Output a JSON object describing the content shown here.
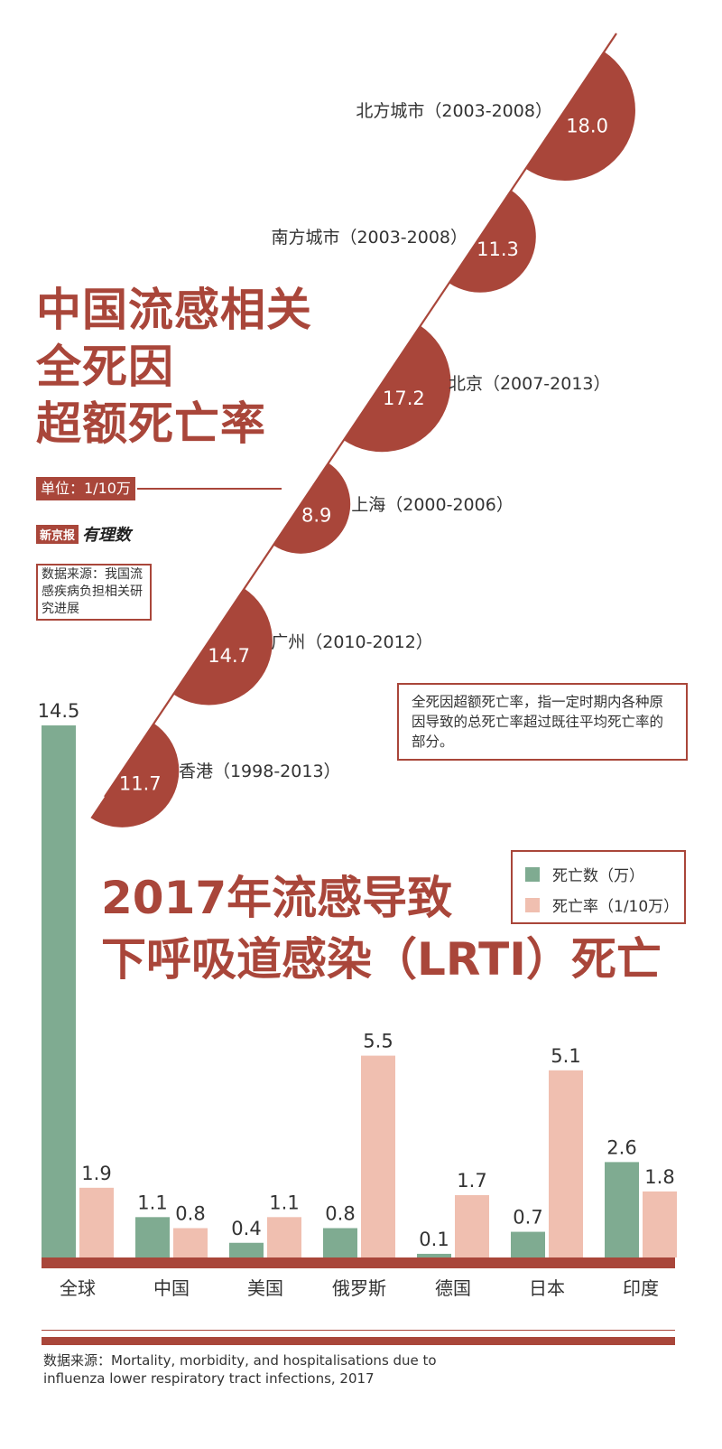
{
  "title": [
    "中国流感相关",
    "全死因",
    "超额死亡率"
  ],
  "unit": "单位：1/10万",
  "brand": {
    "name": "新京报",
    "sub": "有理数"
  },
  "source_top": "数据来源：我国流感疾病负担相关研究进展",
  "definition": "全死因超额死亡率，指一定时期内各种原因导致的总死亡率超过既往平均死亡率的部分。",
  "title2": [
    "2017年流感导致",
    "下呼吸道感染（LRTI）死亡"
  ],
  "footer_source": "数据来源：Mortality, morbidity, and hospitalisations due to influenza lower respiratory tract infections, 2017",
  "colors": {
    "accent": "#a9463a",
    "deaths": "#7fab91",
    "rate": "#f0bfb0",
    "baseline": "#a9463a"
  },
  "chart_data": [
    {
      "type": "semicircle",
      "unit": "单位：1/10万",
      "items": [
        {
          "label": "北方城市（2003-2008）",
          "value": 18.0
        },
        {
          "label": "南方城市（2003-2008）",
          "value": 11.3
        },
        {
          "label": "北京（2007-2013）",
          "value": 17.2
        },
        {
          "label": "上海（2000-2006）",
          "value": 8.9
        },
        {
          "label": "广州（2010-2012）",
          "value": 14.7
        },
        {
          "label": "香港（1998-2013）",
          "value": 11.7
        }
      ]
    },
    {
      "type": "bar",
      "categories": [
        "全球",
        "中国",
        "美国",
        "俄罗斯",
        "德国",
        "日本",
        "印度"
      ],
      "series": [
        {
          "name": "死亡数（万）",
          "values": [
            14.5,
            1.1,
            0.4,
            0.8,
            0.1,
            0.7,
            2.6
          ]
        },
        {
          "name": "死亡率（1/10万）",
          "values": [
            1.9,
            0.8,
            1.1,
            5.5,
            1.7,
            5.1,
            1.8
          ]
        }
      ],
      "ylim": [
        0,
        14.5
      ],
      "legend": "top-right"
    }
  ]
}
